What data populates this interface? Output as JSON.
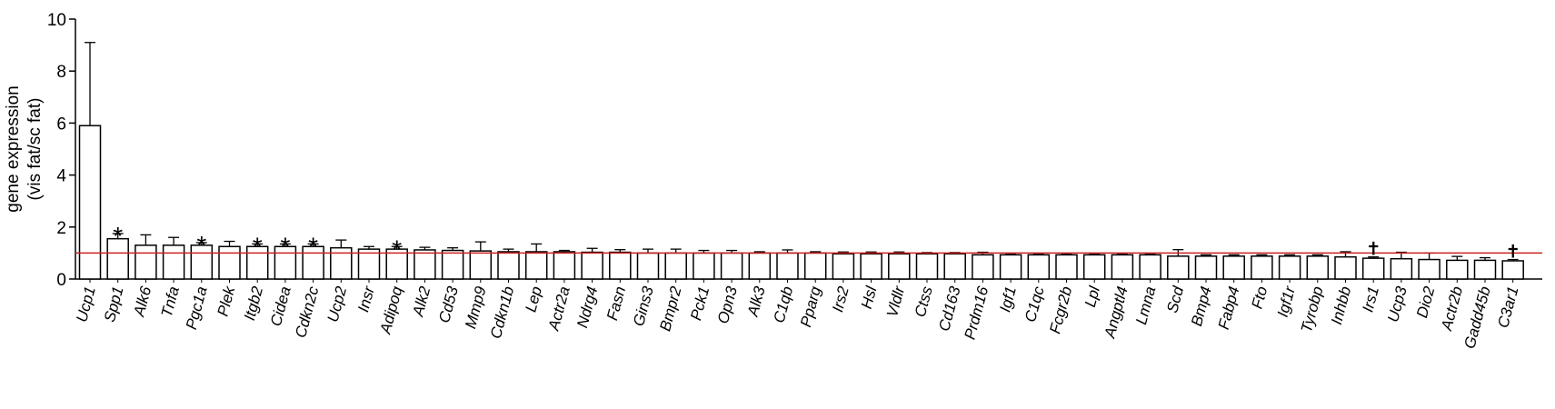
{
  "chart_data": {
    "type": "bar",
    "ylabel_lines": [
      "gene expression",
      "(vis fat/sc fat)"
    ],
    "ylim": [
      0,
      10
    ],
    "yticks": [
      "0",
      "2",
      "4",
      "6",
      "8",
      "10"
    ],
    "reference_line": 1,
    "reference_color": "#cc2222",
    "bar_fill": "#ffffff",
    "bar_stroke": "#000000",
    "categories": [
      "Ucp1",
      "Spp1",
      "Alk6",
      "Tnfa",
      "Pgc1a",
      "Plek",
      "Itgb2",
      "Cidea",
      "Cdkn2c",
      "Ucp2",
      "Insr",
      "Adipoq",
      "Alk2",
      "Cd53",
      "Mmp9",
      "Cdkn1b",
      "Lep",
      "Actr2a",
      "Ndrg4",
      "Fasn",
      "Gins3",
      "Bmpr2",
      "Pck1",
      "Opn3",
      "Alk3",
      "C1qb",
      "Pparg",
      "Irs2",
      "Hsl",
      "Vldlr",
      "Ctss",
      "Cd163",
      "Prdm16",
      "Igf1",
      "C1qc",
      "Fcgr2b",
      "Lpl",
      "Angptl4",
      "Lmna",
      "Scd",
      "Bmp4",
      "Fabp4",
      "Fto",
      "Igf1r",
      "Tyrobp",
      "Inhbb",
      "Irs1",
      "Ucp3",
      "Dio2",
      "Actr2b",
      "Gadd45b",
      "C3ar1"
    ],
    "values": [
      5.9,
      1.55,
      1.3,
      1.3,
      1.3,
      1.25,
      1.25,
      1.25,
      1.25,
      1.2,
      1.15,
      1.15,
      1.12,
      1.1,
      1.08,
      1.05,
      1.05,
      1.05,
      1.03,
      1.03,
      1.0,
      1.0,
      1.0,
      1.0,
      1.0,
      1.0,
      1.0,
      0.97,
      0.97,
      0.97,
      0.97,
      0.97,
      0.93,
      0.93,
      0.93,
      0.93,
      0.93,
      0.93,
      0.93,
      0.88,
      0.88,
      0.88,
      0.88,
      0.88,
      0.88,
      0.85,
      0.8,
      0.78,
      0.75,
      0.72,
      0.72,
      0.7
    ],
    "errors": [
      3.2,
      0.2,
      0.4,
      0.3,
      0.1,
      0.2,
      0.1,
      0.1,
      0.1,
      0.3,
      0.1,
      0.1,
      0.1,
      0.1,
      0.35,
      0.1,
      0.3,
      0.05,
      0.15,
      0.1,
      0.15,
      0.15,
      0.1,
      0.1,
      0.05,
      0.12,
      0.05,
      0.07,
      0.07,
      0.07,
      0.05,
      0.05,
      0.1,
      0.05,
      0.05,
      0.05,
      0.05,
      0.05,
      0.05,
      0.25,
      0.05,
      0.05,
      0.05,
      0.05,
      0.05,
      0.2,
      0.05,
      0.25,
      0.25,
      0.15,
      0.1,
      0.05
    ],
    "markers": [
      {
        "category": "Spp1",
        "symbol": "*"
      },
      {
        "category": "Pgc1a",
        "symbol": "*"
      },
      {
        "category": "Itgb2",
        "symbol": "*"
      },
      {
        "category": "Cidea",
        "symbol": "*"
      },
      {
        "category": "Cdkn2c",
        "symbol": "*"
      },
      {
        "category": "Adipoq",
        "symbol": "*"
      },
      {
        "category": "Irs1",
        "symbol": "✝"
      },
      {
        "category": "C3ar1",
        "symbol": "✝"
      }
    ]
  }
}
